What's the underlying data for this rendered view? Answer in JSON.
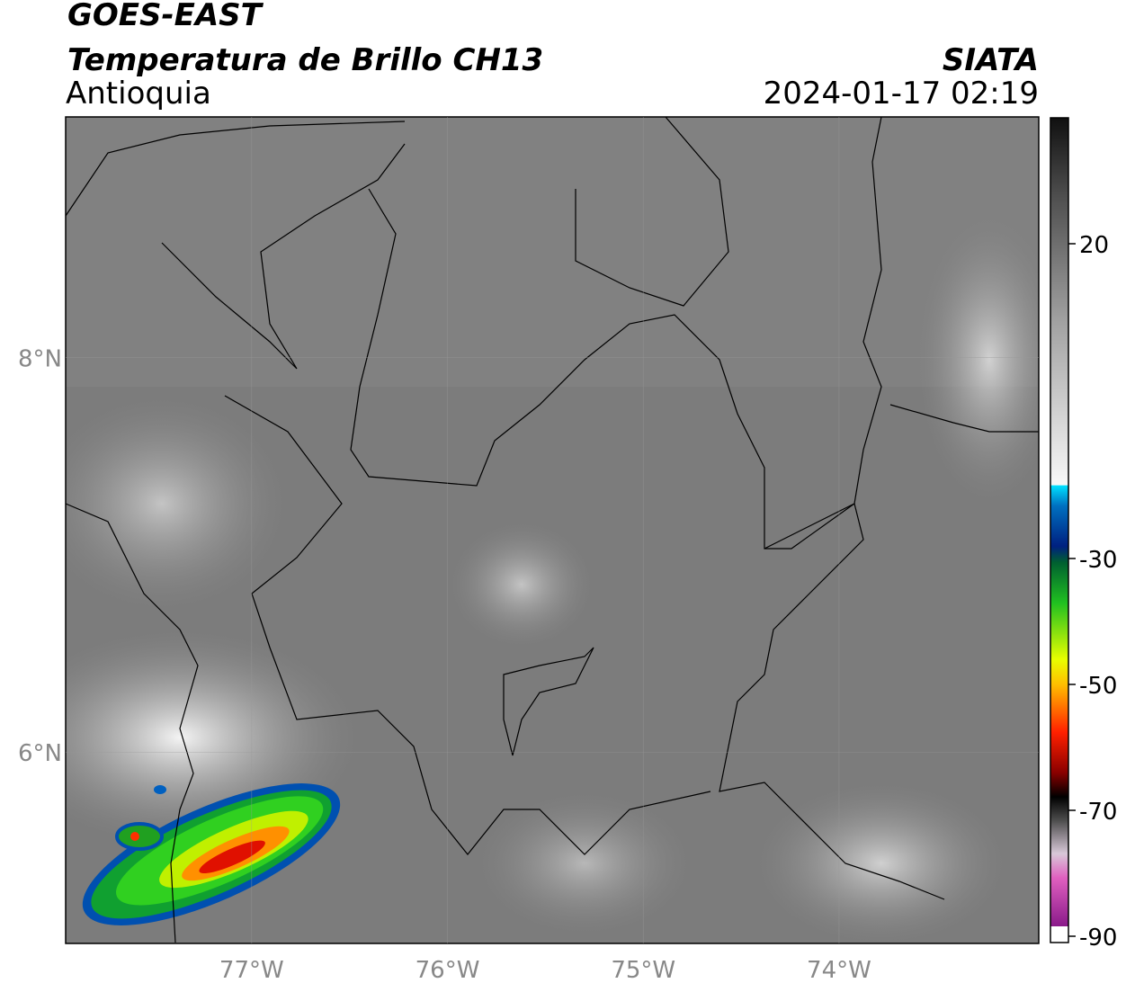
{
  "header": {
    "title": "GOES-EAST",
    "subtitle": "Temperatura de Brillo CH13",
    "region": "Antioquia",
    "source": "SIATA",
    "datetime": "2024-01-17 02:19"
  },
  "map": {
    "xlim": [
      -77.95,
      -72.98
    ],
    "ylim": [
      5.03,
      9.22
    ],
    "xticks": [
      {
        "value": -77,
        "label": "77°W"
      },
      {
        "value": -76,
        "label": "76°W"
      },
      {
        "value": -75,
        "label": "75°W"
      },
      {
        "value": -74,
        "label": "74°W"
      }
    ],
    "yticks": [
      {
        "value": 8,
        "label": "8°N"
      },
      {
        "value": 6,
        "label": "6°N"
      }
    ]
  },
  "colorbar": {
    "lim": [
      -91,
      40
    ],
    "ticks": [
      20,
      -30,
      -50,
      -70,
      -90
    ]
  }
}
